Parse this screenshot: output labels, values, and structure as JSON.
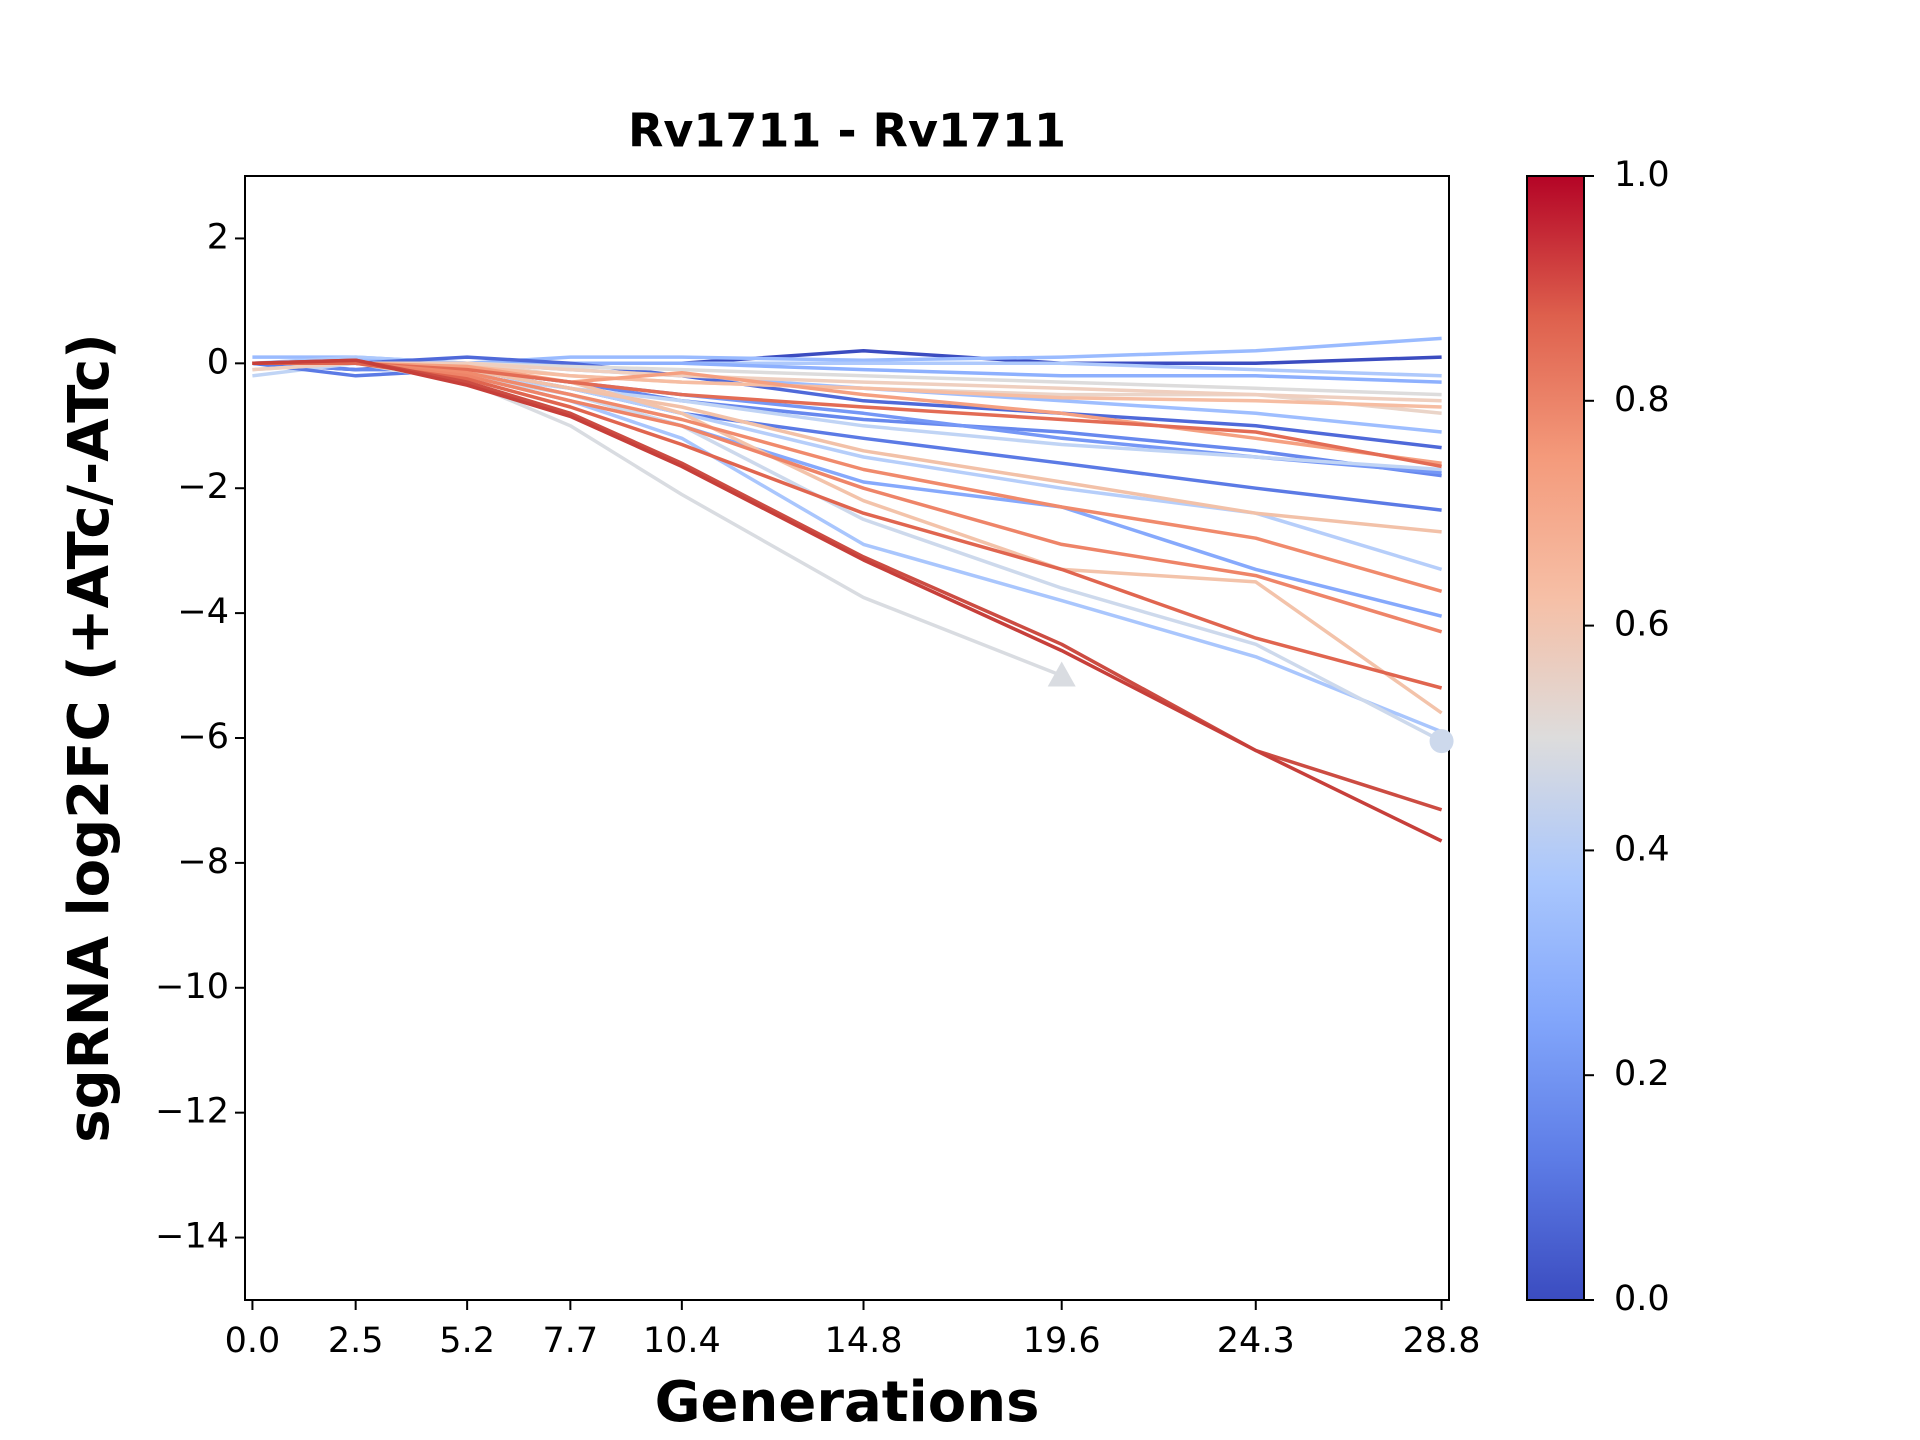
{
  "chart_data": {
    "type": "line",
    "title": "Rv1711 - Rv1711",
    "x_label": "Generations",
    "y_label": "sgRNA log2FC (+ATc/-ATc)",
    "x": [
      0,
      2.5,
      5.2,
      7.7,
      10.4,
      14.8,
      19.6,
      24.3,
      28.8
    ],
    "xlim": [
      -0.18,
      28.98
    ],
    "xticks": [
      {
        "value": 0,
        "label": "0.0"
      },
      2.5,
      5.2,
      7.7,
      10.4,
      14.8,
      19.6,
      24.3,
      28.8
    ],
    "ylim": [
      -15,
      3
    ],
    "yticks": [
      {
        "value": -14,
        "label": "−14"
      },
      {
        "value": -12,
        "label": "−12"
      },
      {
        "value": -10,
        "label": "−10"
      },
      {
        "value": -8,
        "label": "−8"
      },
      {
        "value": -6,
        "label": "−6"
      },
      {
        "value": -4,
        "label": "−4"
      },
      {
        "value": -2,
        "label": "−2"
      },
      0,
      2
    ],
    "grid": false,
    "colorbar": {
      "cmap": "coolwarm",
      "lim": [
        0,
        1
      ],
      "ticks": [
        {
          "value": 0,
          "label": "0.0"
        },
        0.2,
        0.4,
        0.6,
        0.8,
        {
          "value": 1,
          "label": "1.0"
        }
      ]
    },
    "series": [
      {
        "color": "#3b4cc0",
        "values": [
          0,
          -0.1,
          0,
          0,
          0,
          0.2,
          0,
          0,
          0.1
        ]
      },
      {
        "color": "#9abbff",
        "values": [
          0.1,
          0.1,
          0,
          0.1,
          0.1,
          0.05,
          0.1,
          0.2,
          0.4
        ]
      },
      {
        "color": "#aec9fc",
        "values": [
          0,
          0.1,
          0,
          0,
          0,
          0,
          0,
          -0.1,
          -0.2
        ]
      },
      {
        "color": "#8db0fe",
        "values": [
          0,
          0,
          0,
          0,
          0,
          -0.1,
          -0.2,
          -0.2,
          -0.3
        ]
      },
      {
        "color": "#9ebeff",
        "values": [
          0,
          0.05,
          0,
          -0.1,
          -0.2,
          -0.4,
          -0.6,
          -0.8,
          -1.1
        ]
      },
      {
        "color": "#4f69d9",
        "values": [
          0,
          0,
          0.1,
          0,
          -0.2,
          -0.6,
          -0.8,
          -1.0,
          -1.35
        ]
      },
      {
        "color": "#6788ee",
        "values": [
          0,
          -0.1,
          -0.1,
          -0.3,
          -0.6,
          -0.9,
          -1.1,
          -1.4,
          -1.8
        ]
      },
      {
        "color": "#7597f6",
        "values": [
          0,
          0,
          -0.1,
          -0.3,
          -0.5,
          -0.8,
          -1.2,
          -1.5,
          -1.75
        ]
      },
      {
        "color": "#c0d4f5",
        "values": [
          -0.2,
          0,
          -0.2,
          -0.4,
          -0.6,
          -1.0,
          -1.3,
          -1.5,
          -1.7
        ]
      },
      {
        "color": "#5b7ae5",
        "values": [
          0,
          -0.2,
          -0.1,
          -0.4,
          -0.8,
          -1.2,
          -1.6,
          -2.0,
          -2.35
        ]
      },
      {
        "color": "#b6cefa",
        "values": [
          0,
          0,
          -0.1,
          -0.4,
          -0.8,
          -1.5,
          -2.0,
          -2.4,
          -3.3
        ]
      },
      {
        "color": "#86a9fc",
        "values": [
          0,
          0,
          -0.15,
          -0.5,
          -1.0,
          -1.9,
          -2.3,
          -3.3,
          -4.05
        ]
      },
      {
        "color": "#a9c6fd",
        "values": [
          0,
          0,
          -0.2,
          -0.6,
          -1.2,
          -2.9,
          -3.8,
          -4.7,
          -5.9
        ]
      },
      {
        "color": "#cdd9ec",
        "marker": "o",
        "values": [
          0,
          0,
          -0.2,
          -0.5,
          -1.0,
          -2.5,
          -3.6,
          -4.5,
          -6.05
        ]
      },
      {
        "color": "#d9dce1",
        "marker": "^",
        "values": [
          -0.1,
          0,
          -0.3,
          -1.0,
          -2.1,
          -3.75,
          -5.0,
          null,
          null
        ]
      },
      {
        "color": "#dddcdc",
        "values": [
          0,
          0,
          0,
          -0.05,
          -0.1,
          -0.2,
          -0.3,
          -0.4,
          -0.5
        ]
      },
      {
        "color": "#ead4c8",
        "values": [
          0,
          0,
          0,
          -0.2,
          -0.3,
          -0.4,
          -0.5,
          -0.5,
          -0.8
        ]
      },
      {
        "color": "#efcfbf",
        "values": [
          -0.1,
          0,
          0,
          -0.1,
          -0.2,
          -0.3,
          -0.4,
          -0.5,
          -0.6
        ]
      },
      {
        "color": "#f6bda2",
        "values": [
          0,
          0,
          -0.05,
          -0.2,
          -0.3,
          -0.4,
          -0.55,
          -0.6,
          -0.7
        ]
      },
      {
        "color": "#f2c1a8",
        "values": [
          0,
          0,
          -0.1,
          -0.4,
          -0.7,
          -1.4,
          -1.9,
          -2.4,
          -2.7
        ]
      },
      {
        "color": "#f3c3aa",
        "values": [
          0,
          0,
          -0.1,
          -0.3,
          -0.8,
          -2.2,
          -3.3,
          -3.5,
          -5.6
        ]
      },
      {
        "color": "#f5a081",
        "values": [
          0,
          0,
          -0.05,
          -0.3,
          -0.15,
          -0.5,
          -0.8,
          -1.2,
          -1.6
        ]
      },
      {
        "color": "#e36c55",
        "values": [
          0,
          0,
          -0.1,
          -0.3,
          -0.5,
          -0.7,
          -0.9,
          -1.1,
          -1.65
        ]
      },
      {
        "color": "#f08a6c",
        "values": [
          0,
          0,
          -0.15,
          -0.5,
          -0.9,
          -1.7,
          -2.3,
          -2.8,
          -3.65
        ]
      },
      {
        "color": "#ee8468",
        "values": [
          0,
          0,
          -0.2,
          -0.6,
          -1.0,
          -2.0,
          -2.9,
          -3.4,
          -4.3
        ]
      },
      {
        "color": "#e0654f",
        "values": [
          0,
          0,
          -0.25,
          -0.7,
          -1.3,
          -2.4,
          -3.3,
          -4.4,
          -5.2
        ]
      },
      {
        "color": "#cc4c42",
        "values": [
          0,
          0.05,
          -0.3,
          -0.8,
          -1.6,
          -3.1,
          -4.5,
          -6.2,
          -7.15
        ]
      },
      {
        "color": "#c73f3a",
        "values": [
          0,
          0.05,
          -0.35,
          -0.85,
          -1.65,
          -3.15,
          -4.6,
          -6.2,
          -7.65
        ]
      }
    ]
  }
}
